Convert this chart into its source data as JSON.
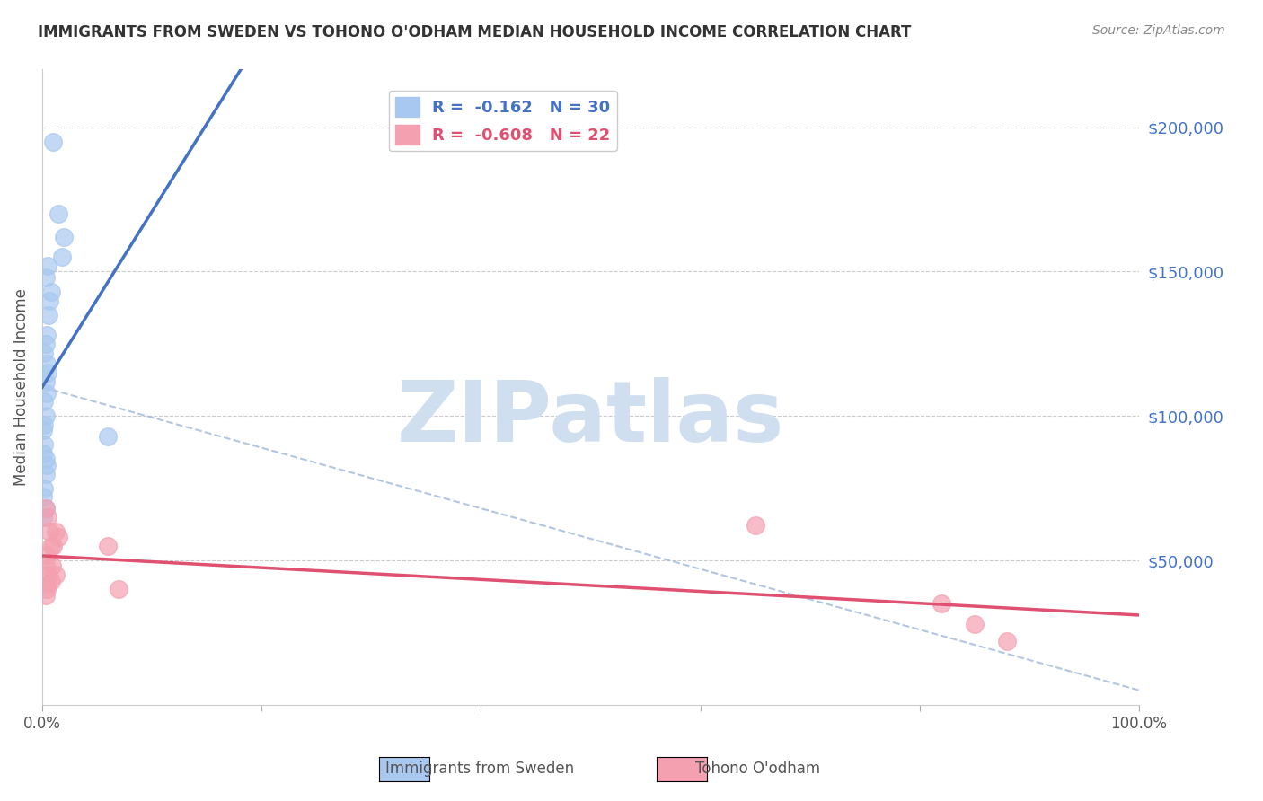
{
  "title": "IMMIGRANTS FROM SWEDEN VS TOHONO O'ODHAM MEDIAN HOUSEHOLD INCOME CORRELATION CHART",
  "source": "Source: ZipAtlas.com",
  "xlabel": "",
  "ylabel": "Median Household Income",
  "xlim": [
    0,
    1.0
  ],
  "ylim": [
    0,
    220000
  ],
  "yticks": [
    0,
    50000,
    100000,
    150000,
    200000
  ],
  "ytick_labels": [
    "",
    "$50,000",
    "$100,000",
    "$150,000",
    "$200,000"
  ],
  "xtick_labels": [
    "0.0%",
    "100.0%"
  ],
  "watermark": "ZIPatlas",
  "legend_blue_r": "R =  -0.162",
  "legend_blue_n": "N = 30",
  "legend_pink_r": "R =  -0.608",
  "legend_pink_n": "N = 22",
  "blue_color": "#a8c8f0",
  "blue_line_color": "#4472c4",
  "pink_color": "#f4a0b0",
  "pink_line_color": "#e05070",
  "blue_r": -0.162,
  "pink_r": -0.608,
  "blue_scatter_x": [
    0.01,
    0.015,
    0.02,
    0.018,
    0.005,
    0.003,
    0.008,
    0.007,
    0.006,
    0.004,
    0.003,
    0.002,
    0.004,
    0.005,
    0.003,
    0.004,
    0.002,
    0.003,
    0.002,
    0.001,
    0.002,
    0.001,
    0.003,
    0.004,
    0.003,
    0.002,
    0.001,
    0.003,
    0.06,
    0.001
  ],
  "blue_scatter_y": [
    195000,
    170000,
    162000,
    155000,
    152000,
    148000,
    143000,
    140000,
    135000,
    128000,
    125000,
    122000,
    118000,
    115000,
    112000,
    108000,
    105000,
    100000,
    97000,
    95000,
    90000,
    87000,
    85000,
    83000,
    80000,
    75000,
    72000,
    68000,
    93000,
    65000
  ],
  "pink_scatter_x": [
    0.003,
    0.005,
    0.007,
    0.008,
    0.004,
    0.003,
    0.006,
    0.005,
    0.004,
    0.003,
    0.012,
    0.015,
    0.01,
    0.009,
    0.012,
    0.008,
    0.65,
    0.82,
    0.85,
    0.88,
    0.06,
    0.07
  ],
  "pink_scatter_y": [
    68000,
    65000,
    60000,
    55000,
    52000,
    48000,
    45000,
    42000,
    40000,
    38000,
    60000,
    58000,
    55000,
    48000,
    45000,
    43000,
    62000,
    35000,
    28000,
    22000,
    55000,
    40000
  ],
  "background_color": "#ffffff",
  "grid_color": "#cccccc",
  "title_color": "#333333",
  "right_label_color": "#4472c4",
  "watermark_color": "#d0dff0"
}
